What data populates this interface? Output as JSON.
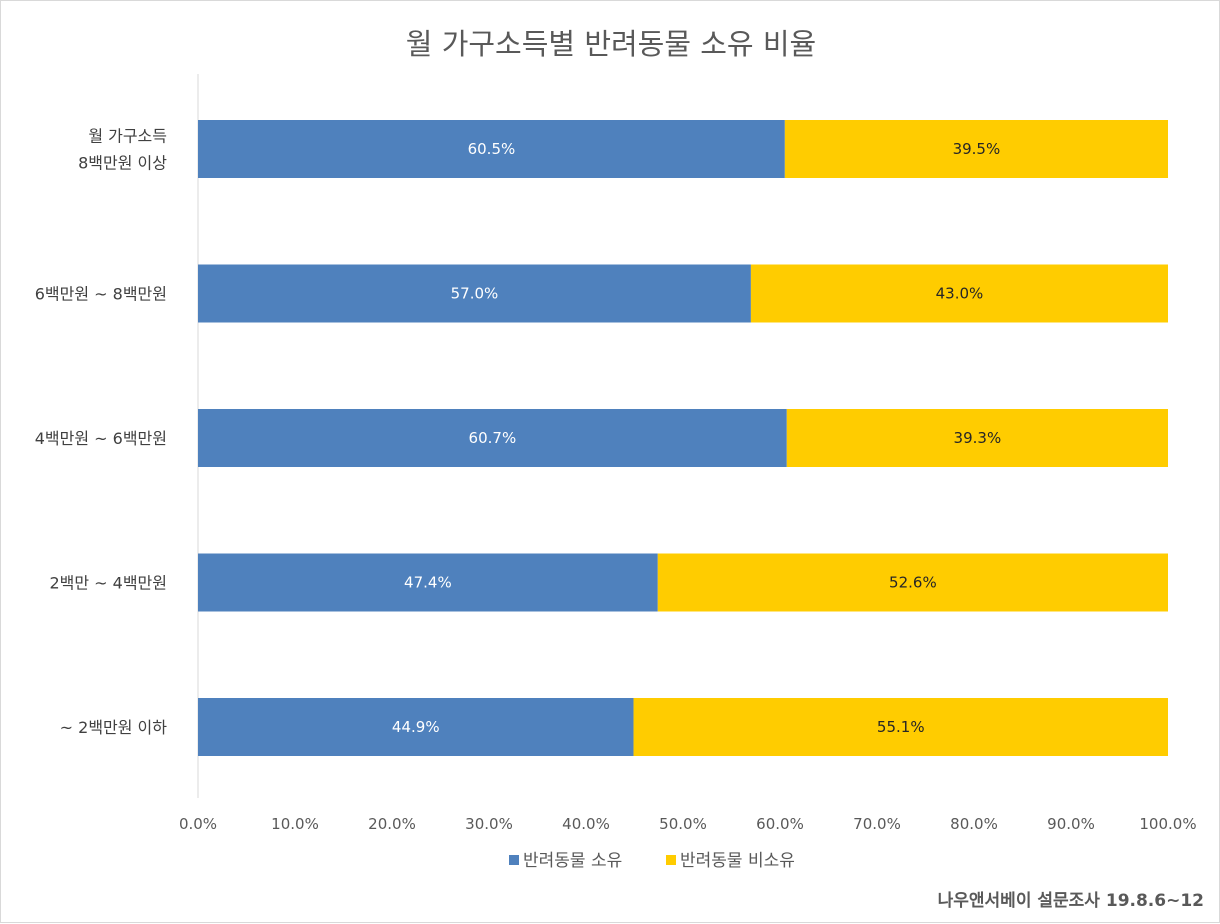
{
  "chart_data": {
    "type": "bar",
    "orientation": "horizontal",
    "stacked": "percent",
    "title": "월 가구소득별 반려동물 소유 비율",
    "categories": [
      [
        "월 가구소득",
        "8백만원 이상"
      ],
      [
        "6백만원 ~ 8백만원"
      ],
      [
        "4백만원 ~ 6백만원"
      ],
      [
        "2백만 ~ 4백만원"
      ],
      [
        "~ 2백만원 이하"
      ]
    ],
    "series": [
      {
        "name": "반려동물 소유",
        "color": "#4f81bd",
        "label_color": "#ffffff",
        "values": [
          60.5,
          57.0,
          60.7,
          47.4,
          44.9
        ],
        "labels": [
          "60.5%",
          "57.0%",
          "60.7%",
          "47.4%",
          "44.9%"
        ]
      },
      {
        "name": "반려동물 비소유",
        "color": "#ffcc00",
        "label_color": "#262626",
        "values": [
          39.5,
          43.0,
          39.3,
          52.6,
          55.1
        ],
        "labels": [
          "39.5%",
          "43.0%",
          "39.3%",
          "52.6%",
          "55.1%"
        ]
      }
    ],
    "xlim": [
      0,
      100
    ],
    "xticks": [
      "0.0%",
      "10.0%",
      "20.0%",
      "30.0%",
      "40.0%",
      "50.0%",
      "60.0%",
      "70.0%",
      "80.0%",
      "90.0%",
      "100.0%"
    ],
    "grid": false,
    "legend_position": "bottom"
  },
  "source_note": "나우앤서베이 설문조사 19.8.6~12"
}
